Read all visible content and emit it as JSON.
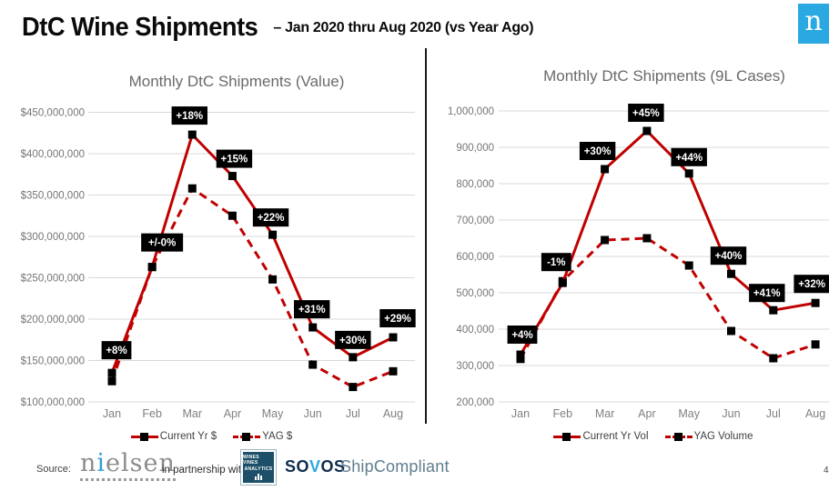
{
  "header": {
    "title": "DtC Wine Shipments",
    "subtitle": "– Jan 2020 thru Aug 2020 (vs Year Ago)",
    "brand_letter": "n"
  },
  "colors": {
    "line_red": "#C00000",
    "marker_black": "#000000",
    "label_bg": "#000000",
    "label_fg": "#FFFFFF",
    "gridline": "#D9D9D9",
    "axis_text": "#757575",
    "nielsen_blue": "#29A8E1",
    "wva_navy": "#1D5068",
    "sovos_navy": "#0D2D4E",
    "sovos_v_blue": "#29A8E1",
    "shipcompliant_gray": "#607D8F"
  },
  "chart_data": [
    {
      "type": "line",
      "title": "Monthly DtC Shipments (Value)",
      "categories": [
        "Jan",
        "Feb",
        "Mar",
        "Apr",
        "May",
        "Jun",
        "Jul",
        "Aug"
      ],
      "series": [
        {
          "name": "Current Yr $",
          "style": "solid",
          "values": [
            135000000,
            263000000,
            423000000,
            373000000,
            302000000,
            190000000,
            154000000,
            178000000
          ]
        },
        {
          "name": "YAG $",
          "style": "dashed",
          "values": [
            125000000,
            263000000,
            358000000,
            325000000,
            248000000,
            145000000,
            118000000,
            137000000
          ]
        }
      ],
      "point_labels": [
        "+8%",
        "+/-0%",
        "+18%",
        "+15%",
        "+22%",
        "+31%",
        "+30%",
        "+29%"
      ],
      "ylim": [
        100000000,
        450000000
      ],
      "ytick_values": [
        450000000,
        400000000,
        350000000,
        300000000,
        250000000,
        200000000,
        150000000,
        100000000
      ],
      "ytick_labels": [
        "$450,000,000",
        "$400,000,000",
        "$350,000,000",
        "$300,000,000",
        "$250,000,000",
        "$200,000,000",
        "$150,000,000",
        "$100,000,000"
      ],
      "grid": true,
      "legend_position": "bottom"
    },
    {
      "type": "line",
      "title": "Monthly DtC Shipments (9L Cases)",
      "categories": [
        "Jan",
        "Feb",
        "Mar",
        "Apr",
        "May",
        "Jun",
        "Jul",
        "Aug"
      ],
      "series": [
        {
          "name": "Current Yr Vol",
          "style": "solid",
          "values": [
            330000,
            527000,
            840000,
            945000,
            828000,
            552000,
            452000,
            472000
          ]
        },
        {
          "name": "YAG Volume",
          "style": "dashed",
          "values": [
            318000,
            532000,
            645000,
            650000,
            575000,
            395000,
            320000,
            358000
          ]
        }
      ],
      "point_labels": [
        "+4%",
        "-1%",
        "+30%",
        "+45%",
        "+44%",
        "+40%",
        "+41%",
        "+32%"
      ],
      "ylim": [
        200000,
        1000000
      ],
      "ytick_values": [
        1000000,
        900000,
        800000,
        700000,
        600000,
        500000,
        400000,
        300000,
        200000
      ],
      "ytick_labels": [
        "1,000,000",
        "900,000",
        "800,000",
        "700,000",
        "600,000",
        "500,000",
        "400,000",
        "300,000",
        "200,000"
      ],
      "grid": true,
      "legend_position": "bottom"
    }
  ],
  "footer": {
    "source_label": "Source:",
    "nielsen_parts": {
      "pre": "n",
      "i": "i",
      "post": "elsen"
    },
    "partnership_text": "in partnership with",
    "wva_line1": "WINES VINES",
    "wva_line2": "ANALYTICS",
    "sovos_pre": "SO",
    "sovos_v": "V",
    "sovos_post": "OS",
    "shipcompliant_text": "ShipCompliant",
    "page_number": "4"
  }
}
